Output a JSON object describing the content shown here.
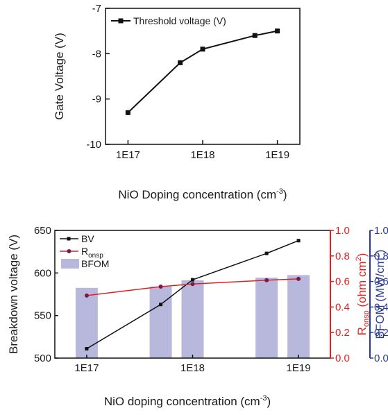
{
  "chart_data": [
    {
      "type": "line",
      "xlabel": "NiO Doping concentration (cm",
      "xlabel_sup": "-3",
      "xlabel_end": ")",
      "ylabel": "Gate Voltage (V)",
      "x_scale": "log",
      "x_ticks": [
        "1E17",
        "1E18",
        "1E19"
      ],
      "y_ticks": [
        "-7",
        "-8",
        "-9",
        "-10"
      ],
      "ylim": [
        -10,
        -7
      ],
      "xlim": [
        5e+16,
        2e+19
      ],
      "legend_position": "top-left",
      "series": [
        {
          "name": "Threshold voltage (V)",
          "marker": "square",
          "color": "#111111",
          "x": [
            1e+17,
            5e+17,
            1e+18,
            5e+18,
            1e+19
          ],
          "y": [
            -9.3,
            -8.2,
            -7.9,
            -7.6,
            -7.5
          ]
        }
      ]
    },
    {
      "type": "bar+line",
      "xlabel": "NiO doping concentration (cm",
      "xlabel_sup": "-3",
      "xlabel_end": ")",
      "x_scale": "log",
      "x_ticks": [
        "1E17",
        "1E18",
        "1E19"
      ],
      "xlim": [
        5e+16,
        2e+19
      ],
      "legend_position": "top-left",
      "axes": {
        "left": {
          "label": "Breakdown voltage (V)",
          "ylim": [
            500,
            650
          ],
          "ticks": [
            "500",
            "550",
            "600",
            "650"
          ],
          "color": "#1a1a1a"
        },
        "right1": {
          "label_main": "R",
          "label_sub": "onsp",
          "label_rest": " (ohm cm",
          "label_sup": "2",
          "label_end": ")",
          "ylim": [
            0,
            1
          ],
          "ticks": [
            "0.0",
            "0.2",
            "0.4",
            "0.6",
            "0.8",
            "1.0"
          ],
          "color": "#e02020"
        },
        "right2": {
          "label_main": "BFOM (MW/cm",
          "label_sup": "2",
          "label_end": ")",
          "ylim": [
            0,
            1
          ],
          "ticks": [
            "0.0",
            "0.2",
            "0.4",
            "0.6",
            "0.8",
            "1.0"
          ],
          "color": "#2b3a8f"
        }
      },
      "series": [
        {
          "name": "BV",
          "axis": "left",
          "kind": "line",
          "marker": "square",
          "color": "#111111",
          "x": [
            1e+17,
            5e+17,
            1e+18,
            5e+18,
            1e+19
          ],
          "y": [
            511,
            563,
            592,
            623,
            638
          ]
        },
        {
          "name_main": "R",
          "name_sub": "onsp",
          "axis": "right1",
          "kind": "line",
          "marker": "circle",
          "color": "#e02020",
          "marker_color": "#7a1a4a",
          "x": [
            1e+17,
            5e+17,
            1e+18,
            5e+18,
            1e+19
          ],
          "y": [
            0.49,
            0.56,
            0.58,
            0.61,
            0.62
          ]
        },
        {
          "name": "BFOM",
          "axis": "right2",
          "kind": "bar",
          "color": "#b8b8dc",
          "x": [
            1e+17,
            5e+17,
            1e+18,
            5e+18,
            1e+19
          ],
          "y": [
            0.55,
            0.56,
            0.61,
            0.63,
            0.65
          ]
        }
      ]
    }
  ]
}
